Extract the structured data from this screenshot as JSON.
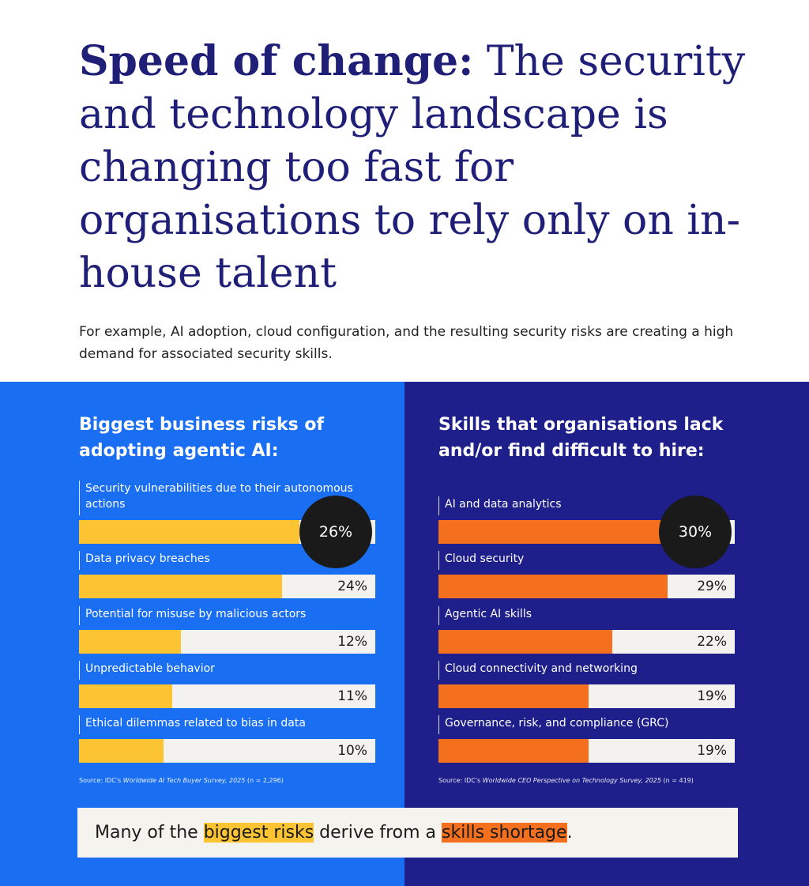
{
  "header": {
    "title_bold": "Speed of change:",
    "title_rest": " The security and technology landscape is changing too fast for organisations to rely only on in-house talent",
    "intro": "For example, AI adoption, cloud configuration, and the resulting security risks are creating a high demand for associated security skills."
  },
  "chart_data": [
    {
      "type": "bar",
      "orientation": "horizontal",
      "title": "Biggest business risks of adopting agentic AI:",
      "categories": [
        "Security vulnerabilities due to their autonomous actions",
        "Data privacy breaches",
        "Potential for misuse by malicious actors",
        "Unpredictable behavior",
        "Ethical dilemmas related to bias in data"
      ],
      "values": [
        26,
        24,
        12,
        11,
        10
      ],
      "value_labels": [
        "26%",
        "24%",
        "12%",
        "11%",
        "10%"
      ],
      "color": "#fcc332",
      "xlim": [
        0,
        35
      ],
      "source_prefix": "Source: IDC's ",
      "source_title": "Worldwide AI Tech Buyer Survey, 2025",
      "source_note": " (n = 2,296)"
    },
    {
      "type": "bar",
      "orientation": "horizontal",
      "title": "Skills that organisations lack and/or find difficult to hire:",
      "categories": [
        "AI and data analytics",
        "Cloud security",
        "Agentic AI skills",
        "Cloud connectivity and networking",
        "Governance, risk, and compliance (GRC)"
      ],
      "values": [
        30,
        29,
        22,
        19,
        19
      ],
      "value_labels": [
        "30%",
        "29%",
        "22%",
        "19%",
        "19%"
      ],
      "color": "#f4701e",
      "xlim": [
        0,
        37.5
      ],
      "source_prefix": "Source: IDC's ",
      "source_title": "Worldwide CEO Perspective on Technology Survey, 2025",
      "source_note": " (n = 419)"
    }
  ],
  "footer": {
    "part1": "Many of the ",
    "highlight1": "biggest risks",
    "part2": " derive from a ",
    "highlight2": "skills shortage",
    "part3": "."
  }
}
